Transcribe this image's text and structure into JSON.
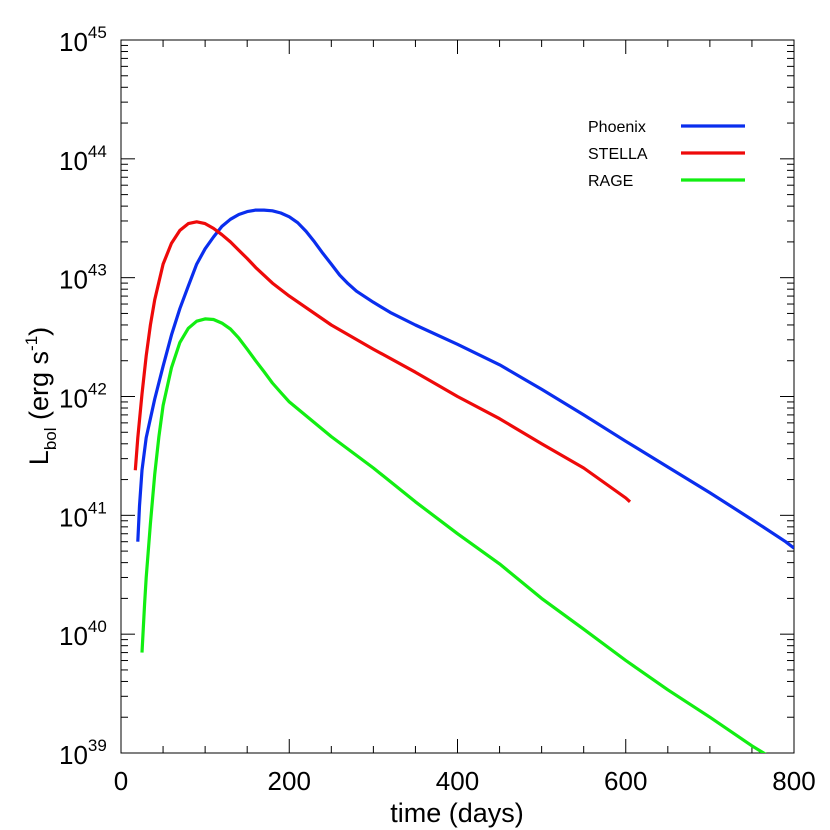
{
  "chart_data": {
    "type": "line",
    "title": "",
    "xlabel": "time (days)",
    "ylabel": {
      "main": "L",
      "sub": "bol",
      "unit_open": " (erg s",
      "unit_exp": "-1",
      "unit_close": ")"
    },
    "xlim": [
      0,
      800
    ],
    "ylim": [
      1e+39,
      1e+45
    ],
    "yscale": "log",
    "grid": false,
    "legend_position": "top-right",
    "x_ticks": [
      {
        "value": 0,
        "label": "0"
      },
      {
        "value": 200,
        "label": "200"
      },
      {
        "value": 400,
        "label": "400"
      },
      {
        "value": 600,
        "label": "600"
      },
      {
        "value": 800,
        "label": "800"
      }
    ],
    "y_ticks": [
      {
        "value": 1e+39,
        "base": "10",
        "exp": "39"
      },
      {
        "value": 1e+40,
        "base": "10",
        "exp": "40"
      },
      {
        "value": 1e+41,
        "base": "10",
        "exp": "41"
      },
      {
        "value": 1e+42,
        "base": "10",
        "exp": "42"
      },
      {
        "value": 1e+43,
        "base": "10",
        "exp": "43"
      },
      {
        "value": 1e+44,
        "base": "10",
        "exp": "44"
      },
      {
        "value": 1e+45,
        "base": "10",
        "exp": "45"
      }
    ],
    "series": [
      {
        "name": "Phoenix",
        "color": "#0a2eee",
        "points": [
          [
            20,
            6e+40
          ],
          [
            22,
            1.2e+41
          ],
          [
            25,
            2.4e+41
          ],
          [
            30,
            4.5e+41
          ],
          [
            40,
            9.5e+41
          ],
          [
            50,
            1.8e+42
          ],
          [
            60,
            3.3e+42
          ],
          [
            70,
            5.5e+42
          ],
          [
            80,
            8.5e+42
          ],
          [
            90,
            1.3e+43
          ],
          [
            100,
            1.75e+43
          ],
          [
            110,
            2.2e+43
          ],
          [
            120,
            2.7e+43
          ],
          [
            130,
            3.1e+43
          ],
          [
            140,
            3.4e+43
          ],
          [
            150,
            3.6e+43
          ],
          [
            160,
            3.7e+43
          ],
          [
            170,
            3.7e+43
          ],
          [
            180,
            3.65e+43
          ],
          [
            190,
            3.5e+43
          ],
          [
            200,
            3.25e+43
          ],
          [
            210,
            2.9e+43
          ],
          [
            220,
            2.45e+43
          ],
          [
            230,
            2e+43
          ],
          [
            240,
            1.6e+43
          ],
          [
            250,
            1.3e+43
          ],
          [
            260,
            1.05e+43
          ],
          [
            270,
            8.9e+42
          ],
          [
            280,
            7.7e+42
          ],
          [
            300,
            6.2e+42
          ],
          [
            320,
            5.1e+42
          ],
          [
            350,
            4e+42
          ],
          [
            400,
            2.75e+42
          ],
          [
            450,
            1.85e+42
          ],
          [
            500,
            1.15e+42
          ],
          [
            550,
            7e+41
          ],
          [
            600,
            4.2e+41
          ],
          [
            650,
            2.55e+41
          ],
          [
            700,
            1.55e+41
          ],
          [
            750,
            9.2e+40
          ],
          [
            790,
            6e+40
          ],
          [
            800,
            5.3e+40
          ]
        ]
      },
      {
        "name": "STELLA",
        "color": "#ee0a0a",
        "points": [
          [
            17,
            2.4e+41
          ],
          [
            20,
            4.5e+41
          ],
          [
            25,
            1.05e+42
          ],
          [
            30,
            2.2e+42
          ],
          [
            35,
            4e+42
          ],
          [
            40,
            6.5e+42
          ],
          [
            50,
            1.3e+43
          ],
          [
            60,
            1.95e+43
          ],
          [
            70,
            2.5e+43
          ],
          [
            80,
            2.85e+43
          ],
          [
            90,
            2.95e+43
          ],
          [
            100,
            2.85e+43
          ],
          [
            110,
            2.6e+43
          ],
          [
            120,
            2.3e+43
          ],
          [
            130,
            2e+43
          ],
          [
            140,
            1.7e+43
          ],
          [
            150,
            1.45e+43
          ],
          [
            160,
            1.22e+43
          ],
          [
            180,
            9e+42
          ],
          [
            200,
            7e+42
          ],
          [
            250,
            4e+42
          ],
          [
            300,
            2.5e+42
          ],
          [
            350,
            1.6e+42
          ],
          [
            400,
            1e+42
          ],
          [
            450,
            6.5e+41
          ],
          [
            500,
            4e+41
          ],
          [
            550,
            2.5e+41
          ],
          [
            600,
            1.4e+41
          ],
          [
            605,
            1.3e+41
          ]
        ]
      },
      {
        "name": "RAGE",
        "color": "#12ee12",
        "points": [
          [
            25,
            7e+39
          ],
          [
            28,
            1.8e+40
          ],
          [
            30,
            3e+40
          ],
          [
            35,
            8.5e+40
          ],
          [
            40,
            2.2e+41
          ],
          [
            45,
            4.6e+41
          ],
          [
            50,
            8.4e+41
          ],
          [
            60,
            1.75e+42
          ],
          [
            70,
            2.85e+42
          ],
          [
            80,
            3.75e+42
          ],
          [
            90,
            4.3e+42
          ],
          [
            100,
            4.5e+42
          ],
          [
            110,
            4.45e+42
          ],
          [
            120,
            4.15e+42
          ],
          [
            130,
            3.7e+42
          ],
          [
            140,
            3.1e+42
          ],
          [
            150,
            2.5e+42
          ],
          [
            160,
            2e+42
          ],
          [
            170,
            1.62e+42
          ],
          [
            180,
            1.3e+42
          ],
          [
            190,
            1.08e+42
          ],
          [
            200,
            9e+41
          ],
          [
            250,
            4.6e+41
          ],
          [
            300,
            2.5e+41
          ],
          [
            350,
            1.3e+41
          ],
          [
            400,
            7e+40
          ],
          [
            450,
            3.9e+40
          ],
          [
            500,
            2e+40
          ],
          [
            550,
            1.1e+40
          ],
          [
            600,
            6e+39
          ],
          [
            650,
            3.4e+39
          ],
          [
            700,
            2e+39
          ],
          [
            750,
            1.15e+39
          ],
          [
            780,
            8.5e+38
          ]
        ]
      }
    ]
  }
}
